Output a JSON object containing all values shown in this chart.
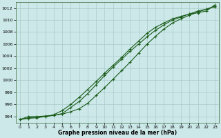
{
  "xlabel": "Graphe pression niveau de la mer (hPa)",
  "background_color": "#cce8e8",
  "grid_color": "#aacccc",
  "line_color": "#1a5c1a",
  "marker_color": "#1a5c1a",
  "xlim": [
    -0.5,
    23.5
  ],
  "ylim": [
    993.0,
    1013.0
  ],
  "yticks": [
    994,
    996,
    998,
    1000,
    1002,
    1004,
    1006,
    1008,
    1010,
    1012
  ],
  "xticks": [
    0,
    1,
    2,
    3,
    4,
    5,
    6,
    7,
    8,
    9,
    10,
    11,
    12,
    13,
    14,
    15,
    16,
    17,
    18,
    19,
    20,
    21,
    22,
    23
  ],
  "series1": [
    993.5,
    994.0,
    994.0,
    994.1,
    994.2,
    994.4,
    994.8,
    995.3,
    996.2,
    997.5,
    998.8,
    1000.2,
    1001.6,
    1003.0,
    1004.5,
    1006.0,
    1007.3,
    1008.5,
    1009.5,
    1010.2,
    1010.8,
    1011.3,
    1011.8,
    1012.2
  ],
  "series2": [
    993.5,
    993.8,
    993.9,
    994.0,
    994.2,
    994.5,
    995.5,
    996.5,
    997.8,
    999.3,
    1000.8,
    1002.2,
    1003.5,
    1004.8,
    1006.0,
    1007.2,
    1008.3,
    1009.2,
    1010.0,
    1010.5,
    1011.0,
    1011.5,
    1011.8,
    1012.3
  ],
  "series3": [
    993.5,
    993.7,
    993.8,
    994.0,
    994.3,
    995.0,
    996.0,
    997.2,
    998.5,
    999.8,
    1001.2,
    1002.5,
    1003.8,
    1005.2,
    1006.5,
    1007.8,
    1008.8,
    1009.5,
    1010.2,
    1010.6,
    1011.0,
    1011.2,
    1011.5,
    1012.5
  ]
}
